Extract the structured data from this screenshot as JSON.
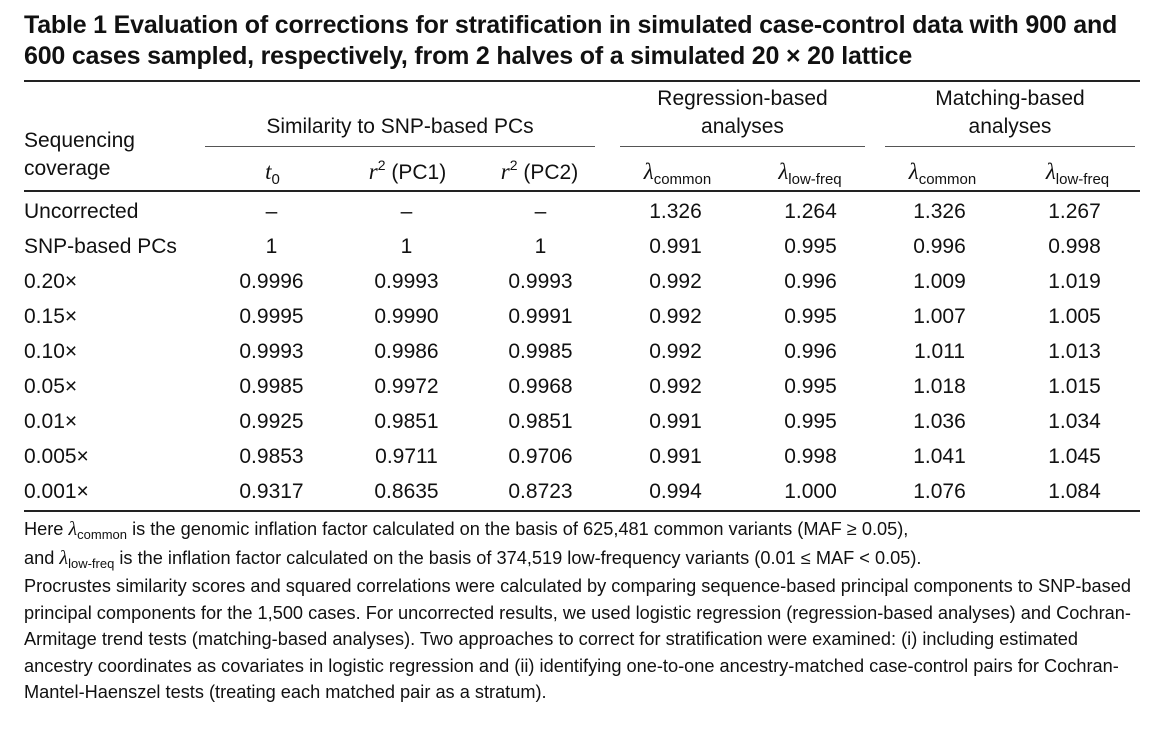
{
  "title": "Table 1  Evaluation of corrections for stratification in simulated case-control data with 900 and 600 cases sampled, respectively, from 2 halves of a simulated 20 × 20 lattice",
  "header": {
    "row_label_line1": "Sequencing",
    "row_label_line2": "coverage",
    "group_similarity": "Similarity to SNP-based PCs",
    "group_regression_line1": "Regression-based",
    "group_regression_line2": "analyses",
    "group_matching_line1": "Matching-based",
    "group_matching_line2": "analyses",
    "col_t": "t",
    "col_t_sub": "0",
    "col_r": "r",
    "col_r_sup": "2",
    "col_pc1": " (PC1)",
    "col_pc2": " (PC2)",
    "lambda": "λ",
    "sub_common": "common",
    "sub_lowfreq": "low-freq"
  },
  "rows": [
    {
      "label": "Uncorrected",
      "t0": "–",
      "r2pc1": "–",
      "r2pc2": "–",
      "reg_common": "1.326",
      "reg_low": "1.264",
      "mat_common": "1.326",
      "mat_low": "1.267"
    },
    {
      "label": "SNP-based PCs",
      "t0": "1",
      "r2pc1": "1",
      "r2pc2": "1",
      "reg_common": "0.991",
      "reg_low": "0.995",
      "mat_common": "0.996",
      "mat_low": "0.998"
    },
    {
      "label": "0.20×",
      "t0": "0.9996",
      "r2pc1": "0.9993",
      "r2pc2": "0.9993",
      "reg_common": "0.992",
      "reg_low": "0.996",
      "mat_common": "1.009",
      "mat_low": "1.019"
    },
    {
      "label": "0.15×",
      "t0": "0.9995",
      "r2pc1": "0.9990",
      "r2pc2": "0.9991",
      "reg_common": "0.992",
      "reg_low": "0.995",
      "mat_common": "1.007",
      "mat_low": "1.005"
    },
    {
      "label": "0.10×",
      "t0": "0.9993",
      "r2pc1": "0.9986",
      "r2pc2": "0.9985",
      "reg_common": "0.992",
      "reg_low": "0.996",
      "mat_common": "1.011",
      "mat_low": "1.013"
    },
    {
      "label": "0.05×",
      "t0": "0.9985",
      "r2pc1": "0.9972",
      "r2pc2": "0.9968",
      "reg_common": "0.992",
      "reg_low": "0.995",
      "mat_common": "1.018",
      "mat_low": "1.015"
    },
    {
      "label": "0.01×",
      "t0": "0.9925",
      "r2pc1": "0.9851",
      "r2pc2": "0.9851",
      "reg_common": "0.991",
      "reg_low": "0.995",
      "mat_common": "1.036",
      "mat_low": "1.034"
    },
    {
      "label": "0.005×",
      "t0": "0.9853",
      "r2pc1": "0.9711",
      "r2pc2": "0.9706",
      "reg_common": "0.991",
      "reg_low": "0.998",
      "mat_common": "1.041",
      "mat_low": "1.045"
    },
    {
      "label": "0.001×",
      "t0": "0.9317",
      "r2pc1": "0.8635",
      "r2pc2": "0.8723",
      "reg_common": "0.994",
      "reg_low": "1.000",
      "mat_common": "1.076",
      "mat_low": "1.084"
    }
  ],
  "footnote": {
    "p1a": "Here ",
    "p1b": " is the genomic inflation factor calculated on the basis of 625,481 common variants (MAF ≥ 0.05),",
    "p2a": "and ",
    "p2b": " is the inflation factor calculated on the basis of 374,519 low-frequency variants (0.01 ≤ MAF < 0.05).",
    "rest": "Procrustes similarity scores and squared correlations were calculated by comparing sequence-based principal components to SNP-based principal components for the 1,500 cases. For uncorrected results, we used logistic regression (regression-based analyses) and Cochran-Armitage trend tests (matching-based analyses). Two approaches to correct for stratification were examined: (i) including estimated ancestry coordinates as covariates in logistic regression and (ii) identifying one-to-one ancestry-matched case-control pairs for Cochran-Mantel-Haenszel tests (treating each matched pair as a stratum)."
  }
}
